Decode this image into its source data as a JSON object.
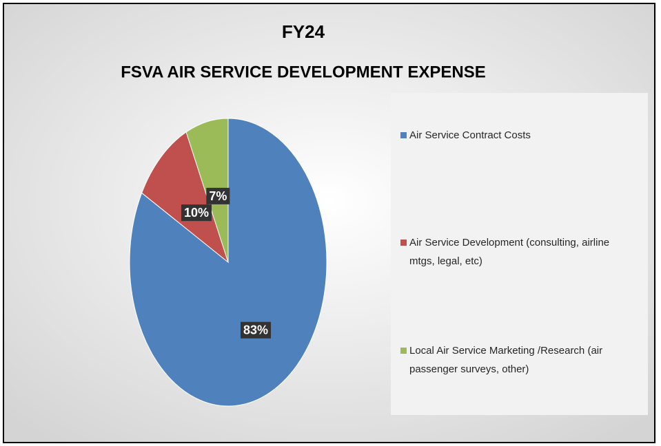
{
  "chart_data": {
    "type": "pie",
    "title": "FY24",
    "subtitle": "FSVA AIR SERVICE DEVELOPMENT EXPENSE",
    "categories": [
      "Air Service Contract Costs",
      "Air Service Development (consulting, airline mtgs, legal, etc)",
      "Local Air Service Marketing /Research (air passenger surveys, other)"
    ],
    "values": [
      83,
      10,
      7
    ],
    "value_labels": [
      "83%",
      "10%",
      "7%"
    ],
    "colors": [
      "#4f81bd",
      "#c0504d",
      "#9bbb59"
    ],
    "legend": "right"
  }
}
